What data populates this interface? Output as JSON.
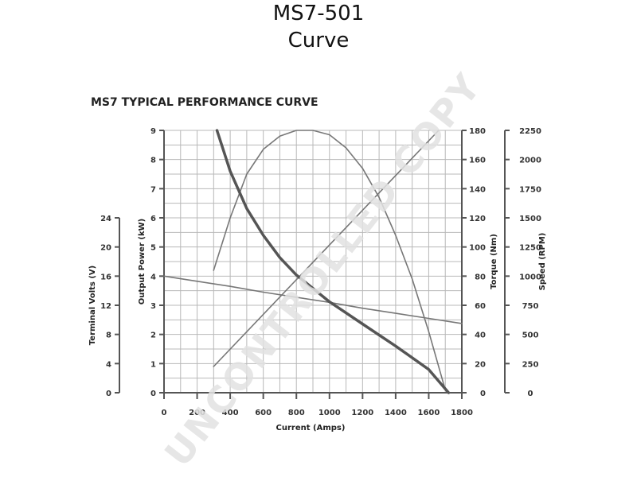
{
  "title": {
    "line1": "MS7-501",
    "line2": "Curve"
  },
  "chart_heading": "MS7 TYPICAL PERFORMANCE CURVE",
  "watermark": "UNCONTROLLED COPY",
  "colors": {
    "curve": "#555555",
    "curve_light": "#777777",
    "grid": "#b8b8b8",
    "axis": "#555555"
  },
  "chart_data": {
    "type": "line",
    "xlabel": "Current (Amps)",
    "xlim": [
      0,
      1800
    ],
    "x_ticks": [
      "0",
      "200",
      "400",
      "600",
      "800",
      "1000",
      "1200",
      "1400",
      "1600",
      "1800"
    ],
    "grid": true,
    "axes": {
      "power": {
        "label": "Output Power (kW)",
        "range": [
          0,
          9
        ],
        "ticks": [
          "0",
          "1",
          "2",
          "3",
          "4",
          "5",
          "6",
          "7",
          "8",
          "9"
        ]
      },
      "volts": {
        "label": "Terminal Volts (V)",
        "range": [
          0,
          24
        ],
        "ticks": [
          "0",
          "4",
          "8",
          "12",
          "16",
          "20",
          "24"
        ]
      },
      "torque": {
        "label": "Torque (Nm)",
        "range": [
          0,
          180
        ],
        "ticks": [
          "0",
          "20",
          "40",
          "60",
          "80",
          "100",
          "120",
          "140",
          "160",
          "180"
        ]
      },
      "speed": {
        "label": "Speed (RPM)",
        "range": [
          0,
          2250
        ],
        "ticks": [
          "0",
          "250",
          "500",
          "750",
          "1000",
          "1250",
          "1500",
          "1750",
          "2000",
          "2250"
        ]
      }
    },
    "series": [
      {
        "axis": "power",
        "style": "thin",
        "points": [
          [
            300,
            4.2
          ],
          [
            400,
            6.0
          ],
          [
            500,
            7.5
          ],
          [
            600,
            8.35
          ],
          [
            700,
            8.8
          ],
          [
            800,
            9.0
          ],
          [
            900,
            9.0
          ],
          [
            1000,
            8.85
          ],
          [
            1100,
            8.4
          ],
          [
            1200,
            7.7
          ],
          [
            1300,
            6.7
          ],
          [
            1400,
            5.4
          ],
          [
            1500,
            3.9
          ],
          [
            1600,
            2.1
          ],
          [
            1700,
            0.1
          ]
        ]
      },
      {
        "axis": "volts",
        "style": "thin",
        "points": [
          [
            0,
            16.0
          ],
          [
            200,
            15.3
          ],
          [
            400,
            14.6
          ],
          [
            600,
            13.8
          ],
          [
            800,
            13.1
          ],
          [
            1000,
            12.4
          ],
          [
            1200,
            11.6
          ],
          [
            1400,
            10.9
          ],
          [
            1600,
            10.2
          ],
          [
            1800,
            9.5
          ]
        ]
      },
      {
        "axis": "torque",
        "style": "thin",
        "points": [
          [
            300,
            18
          ],
          [
            1660,
            180
          ]
        ]
      },
      {
        "axis": "speed",
        "style": "thick",
        "points": [
          [
            320,
            2250
          ],
          [
            400,
            1900
          ],
          [
            500,
            1580
          ],
          [
            600,
            1350
          ],
          [
            700,
            1160
          ],
          [
            800,
            1010
          ],
          [
            1000,
            780
          ],
          [
            1200,
            590
          ],
          [
            1400,
            400
          ],
          [
            1600,
            200
          ],
          [
            1720,
            0
          ]
        ]
      }
    ]
  }
}
